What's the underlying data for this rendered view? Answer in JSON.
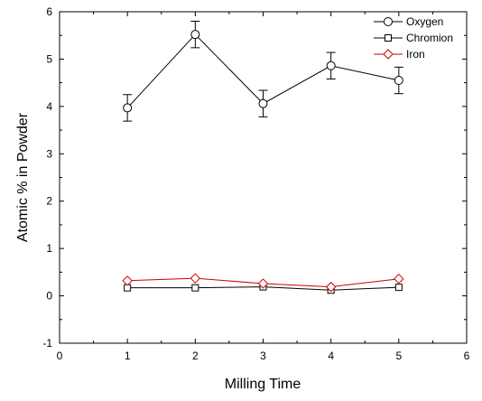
{
  "chart_data": {
    "type": "line",
    "xlabel": "Milling Time",
    "ylabel": "Atomic % in Powder",
    "xlim": [
      0,
      6
    ],
    "ylim": [
      -1,
      6
    ],
    "xticks": [
      "0",
      "1",
      "2",
      "3",
      "4",
      "5",
      "6"
    ],
    "yticks": [
      "-1",
      "0",
      "1",
      "2",
      "3",
      "4",
      "5",
      "6"
    ],
    "grid": false,
    "legend_position": "top-right",
    "x": [
      1,
      2,
      3,
      4,
      5
    ],
    "series": [
      {
        "name": "Oxygen",
        "values": [
          3.97,
          5.52,
          4.06,
          4.86,
          4.55
        ],
        "errors": [
          0.28,
          0.28,
          0.28,
          0.28,
          0.28
        ],
        "marker": "circle",
        "color": "#000000"
      },
      {
        "name": "Chromion",
        "values": [
          0.17,
          0.17,
          0.19,
          0.12,
          0.18
        ],
        "marker": "square",
        "color": "#000000"
      },
      {
        "name": "Iron",
        "values": [
          0.32,
          0.37,
          0.26,
          0.19,
          0.36
        ],
        "marker": "diamond",
        "color": "#cc0000"
      }
    ]
  }
}
